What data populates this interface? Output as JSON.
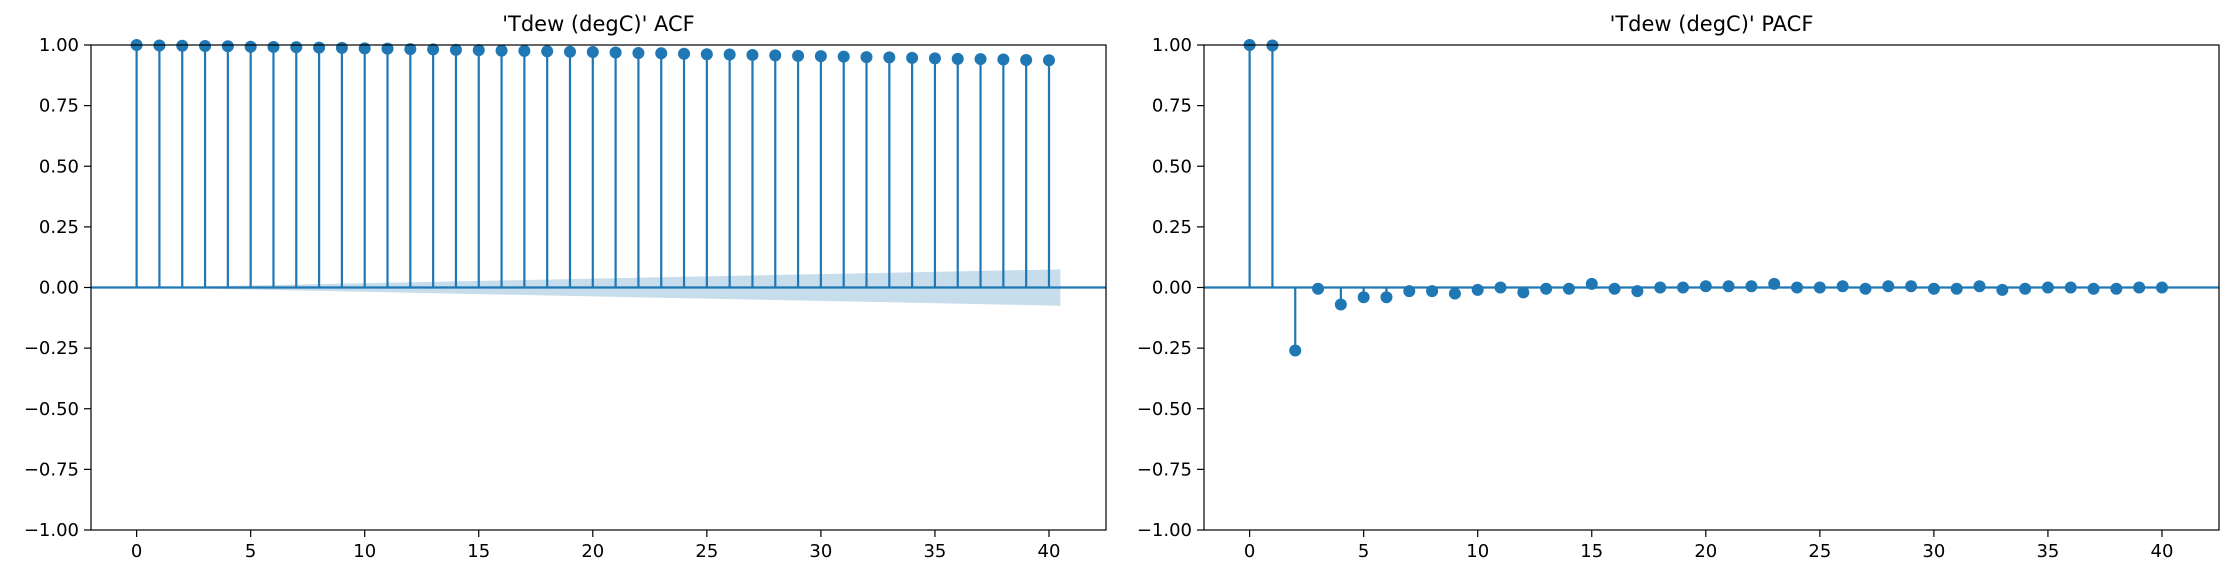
{
  "colors": {
    "stem": "#1f77b4",
    "confidence_band": "#1f77b4",
    "axes": "#000000",
    "background": "#ffffff"
  },
  "chart_data": [
    {
      "type": "stem",
      "title": "'Tdew (degC)' ACF",
      "xlabel": "",
      "ylabel": "",
      "xlim": [
        -2,
        42.5
      ],
      "ylim": [
        -1.0,
        1.0
      ],
      "xticks": [
        0,
        5,
        10,
        15,
        20,
        25,
        30,
        35,
        40
      ],
      "yticks": [
        -1.0,
        -0.75,
        -0.5,
        -0.25,
        0.0,
        0.25,
        0.5,
        0.75,
        1.0
      ],
      "ytick_labels": [
        "−1.00",
        "−0.75",
        "−0.50",
        "−0.25",
        "0.00",
        "0.25",
        "0.50",
        "0.75",
        "1.00"
      ],
      "grid": false,
      "lags": [
        0,
        1,
        2,
        3,
        4,
        5,
        6,
        7,
        8,
        9,
        10,
        11,
        12,
        13,
        14,
        15,
        16,
        17,
        18,
        19,
        20,
        21,
        22,
        23,
        24,
        25,
        26,
        27,
        28,
        29,
        30,
        31,
        32,
        33,
        34,
        35,
        36,
        37,
        38,
        39,
        40
      ],
      "values": [
        1.0,
        0.998,
        0.997,
        0.996,
        0.995,
        0.993,
        0.992,
        0.991,
        0.989,
        0.988,
        0.986,
        0.985,
        0.983,
        0.982,
        0.98,
        0.979,
        0.977,
        0.976,
        0.974,
        0.972,
        0.971,
        0.969,
        0.967,
        0.966,
        0.964,
        0.962,
        0.961,
        0.959,
        0.957,
        0.955,
        0.954,
        0.952,
        0.95,
        0.949,
        0.947,
        0.945,
        0.943,
        0.942,
        0.94,
        0.938,
        0.937
      ],
      "confidence_band": {
        "x_range": [
          0.5,
          40.5
        ],
        "upper": [
          0.0,
          0.075
        ],
        "lower": [
          0.0,
          -0.075
        ]
      }
    },
    {
      "type": "stem",
      "title": "'Tdew (degC)' PACF",
      "xlabel": "",
      "ylabel": "",
      "xlim": [
        -2,
        42.5
      ],
      "ylim": [
        -1.0,
        1.0
      ],
      "xticks": [
        0,
        5,
        10,
        15,
        20,
        25,
        30,
        35,
        40
      ],
      "yticks": [
        -1.0,
        -0.75,
        -0.5,
        -0.25,
        0.0,
        0.25,
        0.5,
        0.75,
        1.0
      ],
      "ytick_labels": [
        "−1.00",
        "−0.75",
        "−0.50",
        "−0.25",
        "0.00",
        "0.25",
        "0.50",
        "0.75",
        "1.00"
      ],
      "grid": false,
      "lags": [
        0,
        1,
        2,
        3,
        4,
        5,
        6,
        7,
        8,
        9,
        10,
        11,
        12,
        13,
        14,
        15,
        16,
        17,
        18,
        19,
        20,
        21,
        22,
        23,
        24,
        25,
        26,
        27,
        28,
        29,
        30,
        31,
        32,
        33,
        34,
        35,
        36,
        37,
        38,
        39,
        40
      ],
      "values": [
        1.0,
        0.998,
        -0.26,
        -0.005,
        -0.07,
        -0.04,
        -0.04,
        -0.015,
        -0.015,
        -0.025,
        -0.01,
        0.0,
        -0.02,
        -0.005,
        -0.005,
        0.015,
        -0.005,
        -0.015,
        0.0,
        0.0,
        0.005,
        0.005,
        0.005,
        0.015,
        0.0,
        0.0,
        0.005,
        -0.005,
        0.005,
        0.005,
        -0.005,
        -0.005,
        0.005,
        -0.01,
        -0.005,
        0.0,
        0.0,
        -0.005,
        -0.005,
        0.0,
        0.0
      ]
    }
  ]
}
